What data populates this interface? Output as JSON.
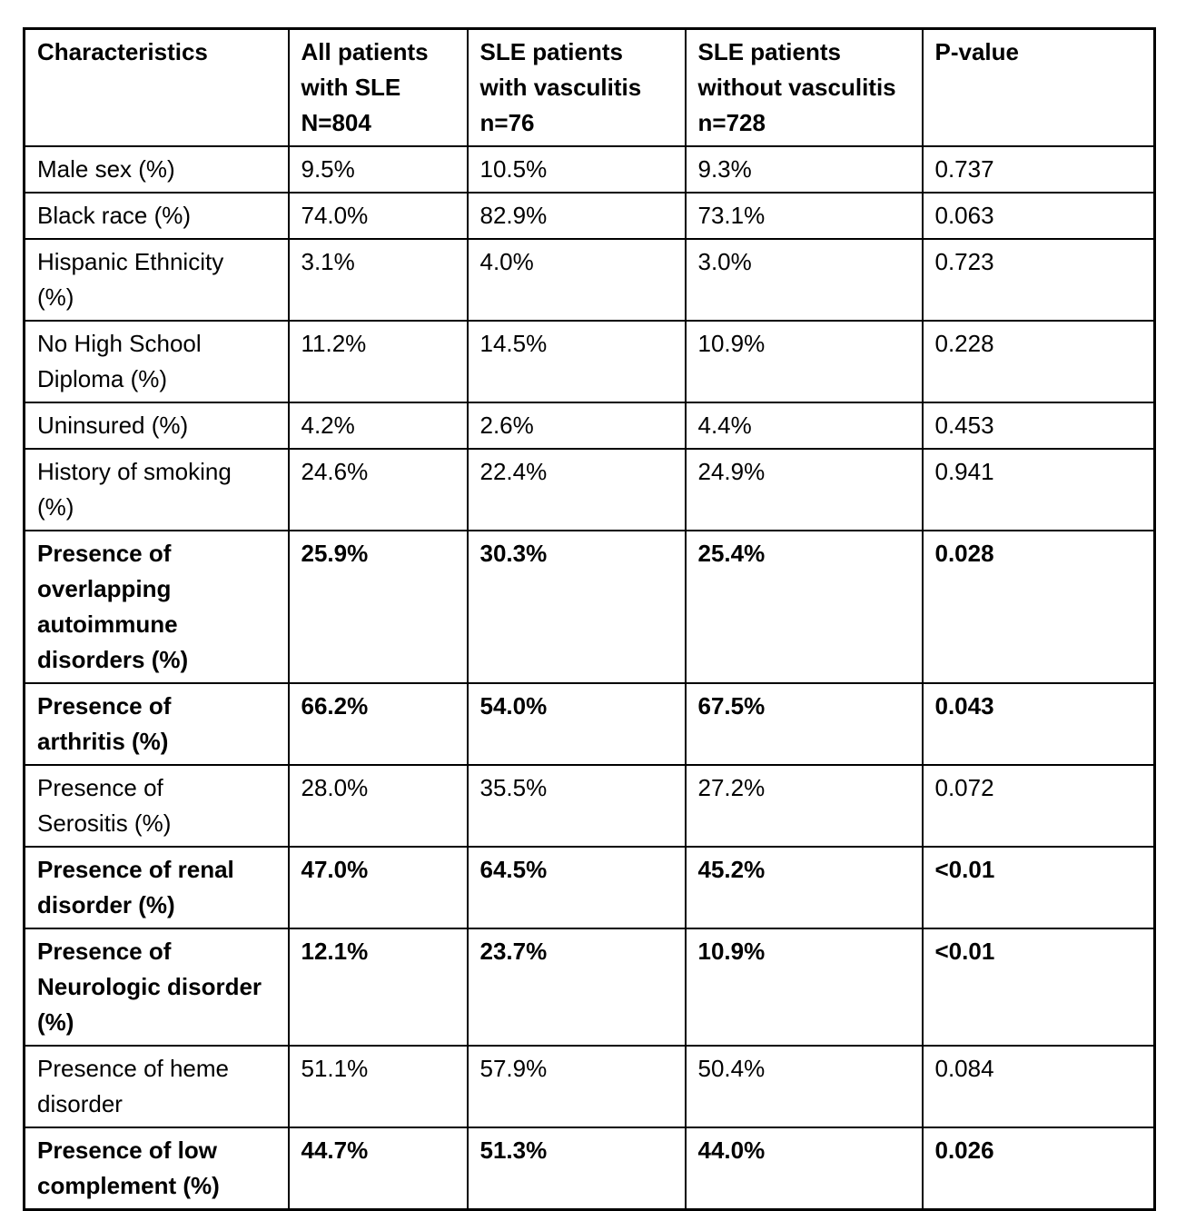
{
  "table": {
    "columns": [
      {
        "label": "Characteristics"
      },
      {
        "label": "All patients\nwith SLE\nN=804"
      },
      {
        "label": "SLE patients\nwith vasculitis\nn=76"
      },
      {
        "label": "SLE patients\nwithout vasculitis\nn=728"
      },
      {
        "label": "P-value"
      }
    ],
    "rows": [
      {
        "label": "Male sex (%)",
        "values": [
          "9.5%",
          "10.5%",
          "9.3%",
          "0.737"
        ],
        "emphasized": false
      },
      {
        "label": "Black race (%)",
        "values": [
          "74.0%",
          "82.9%",
          "73.1%",
          "0.063"
        ],
        "emphasized": false
      },
      {
        "label": "Hispanic Ethnicity\n(%)",
        "values": [
          "3.1%",
          "4.0%",
          "3.0%",
          "0.723"
        ],
        "emphasized": false
      },
      {
        "label": "No High School\nDiploma (%)",
        "values": [
          "11.2%",
          "14.5%",
          "10.9%",
          "0.228"
        ],
        "emphasized": false
      },
      {
        "label": "Uninsured (%)",
        "values": [
          "4.2%",
          "2.6%",
          "4.4%",
          "0.453"
        ],
        "emphasized": false
      },
      {
        "label": "History of smoking\n(%)",
        "values": [
          "24.6%",
          "22.4%",
          "24.9%",
          "0.941"
        ],
        "emphasized": false
      },
      {
        "label": "Presence of\noverlapping\nautoimmune\ndisorders (%)",
        "values": [
          "25.9%",
          "30.3%",
          "25.4%",
          "0.028"
        ],
        "emphasized": true
      },
      {
        "label": "Presence of\narthritis (%)",
        "values": [
          "66.2%",
          "54.0%",
          "67.5%",
          "0.043"
        ],
        "emphasized": true
      },
      {
        "label": "Presence of\nSerositis (%)",
        "values": [
          "28.0%",
          "35.5%",
          "27.2%",
          "0.072"
        ],
        "emphasized": false
      },
      {
        "label": "Presence of renal\ndisorder (%)",
        "values": [
          "47.0%",
          "64.5%",
          "45.2%",
          "<0.01"
        ],
        "emphasized": true
      },
      {
        "label": "Presence of\nNeurologic disorder\n(%)",
        "values": [
          "12.1%",
          "23.7%",
          "10.9%",
          "<0.01"
        ],
        "emphasized": true
      },
      {
        "label": "Presence of heme\ndisorder",
        "values": [
          "51.1%",
          "57.9%",
          "50.4%",
          "0.084"
        ],
        "emphasized": false
      },
      {
        "label": "Presence of low\ncomplement (%)",
        "values": [
          "44.7%",
          "51.3%",
          "44.0%",
          "0.026"
        ],
        "emphasized": true
      }
    ]
  }
}
